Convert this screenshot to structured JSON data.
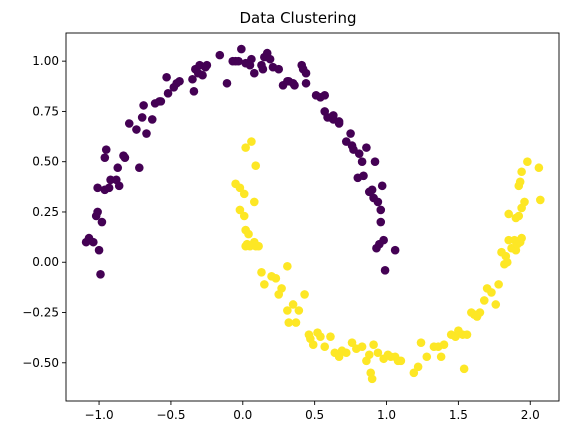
{
  "chart_data": {
    "type": "scatter",
    "title": "Data Clustering",
    "xlabel": "",
    "ylabel": "",
    "xlim": [
      -1.23,
      2.2
    ],
    "ylim": [
      -0.69,
      1.14
    ],
    "xticks": [
      -1.0,
      -0.5,
      0.0,
      0.5,
      1.0,
      1.5,
      2.0
    ],
    "xtick_labels": [
      "−1.0",
      "−0.5",
      "0.0",
      "0.5",
      "1.0",
      "1.5",
      "2.0"
    ],
    "yticks": [
      -0.5,
      -0.25,
      0.0,
      0.25,
      0.5,
      0.75,
      1.0
    ],
    "ytick_labels": [
      "−0.50",
      "−0.25",
      "0.00",
      "0.25",
      "0.50",
      "0.75",
      "1.00"
    ],
    "grid": false,
    "legend": "none",
    "series": [
      {
        "color": "#440154",
        "points": [
          [
            -1.09,
            0.1
          ],
          [
            -1.07,
            0.12
          ],
          [
            -1.04,
            0.1
          ],
          [
            -1.02,
            0.23
          ],
          [
            -1.01,
            0.25
          ],
          [
            -1.01,
            0.37
          ],
          [
            -0.99,
            -0.06
          ],
          [
            -1.0,
            0.06
          ],
          [
            -0.98,
            0.2
          ],
          [
            -0.96,
            0.36
          ],
          [
            -0.96,
            0.52
          ],
          [
            -0.95,
            0.56
          ],
          [
            -0.93,
            0.37
          ],
          [
            -0.92,
            0.41
          ],
          [
            -0.88,
            0.41
          ],
          [
            -0.87,
            0.47
          ],
          [
            -0.86,
            0.38
          ],
          [
            -0.83,
            0.53
          ],
          [
            -0.82,
            0.52
          ],
          [
            -0.79,
            0.69
          ],
          [
            -0.74,
            0.66
          ],
          [
            -0.72,
            0.47
          ],
          [
            -0.7,
            0.72
          ],
          [
            -0.69,
            0.78
          ],
          [
            -0.67,
            0.64
          ],
          [
            -0.63,
            0.71
          ],
          [
            -0.61,
            0.79
          ],
          [
            -0.58,
            0.8
          ],
          [
            -0.57,
            0.8
          ],
          [
            -0.52,
            0.84
          ],
          [
            -0.53,
            0.92
          ],
          [
            -0.48,
            0.87
          ],
          [
            -0.46,
            0.89
          ],
          [
            -0.44,
            0.9
          ],
          [
            -0.35,
            0.91
          ],
          [
            -0.34,
            0.85
          ],
          [
            -0.33,
            0.96
          ],
          [
            -0.31,
            0.94
          ],
          [
            -0.3,
            0.98
          ],
          [
            -0.28,
            0.93
          ],
          [
            -0.26,
            0.97
          ],
          [
            -0.25,
            0.98
          ],
          [
            -0.16,
            1.03
          ],
          [
            -0.11,
            0.89
          ],
          [
            -0.07,
            1.0
          ],
          [
            -0.05,
            1.0
          ],
          [
            -0.03,
            1.0
          ],
          [
            -0.01,
            1.06
          ],
          [
            0.02,
            0.99
          ],
          [
            0.05,
            0.98
          ],
          [
            0.06,
            1.01
          ],
          [
            0.08,
            0.94
          ],
          [
            0.13,
            0.98
          ],
          [
            0.14,
            0.96
          ],
          [
            0.15,
            1.02
          ],
          [
            0.17,
            1.04
          ],
          [
            0.19,
            1.01
          ],
          [
            0.21,
            0.97
          ],
          [
            0.25,
            0.96
          ],
          [
            0.28,
            0.88
          ],
          [
            0.31,
            0.9
          ],
          [
            0.32,
            0.9
          ],
          [
            0.35,
            0.89
          ],
          [
            0.36,
            0.88
          ],
          [
            0.41,
            0.98
          ],
          [
            0.42,
            0.96
          ],
          [
            0.44,
            0.94
          ],
          [
            0.44,
            0.89
          ],
          [
            0.51,
            0.83
          ],
          [
            0.54,
            0.82
          ],
          [
            0.57,
            0.83
          ],
          [
            0.57,
            0.75
          ],
          [
            0.59,
            0.72
          ],
          [
            0.61,
            0.72
          ],
          [
            0.63,
            0.71
          ],
          [
            0.63,
            0.73
          ],
          [
            0.67,
            0.69
          ],
          [
            0.67,
            0.7
          ],
          [
            0.72,
            0.6
          ],
          [
            0.75,
            0.64
          ],
          [
            0.76,
            0.58
          ],
          [
            0.77,
            0.56
          ],
          [
            0.8,
            0.42
          ],
          [
            0.81,
            0.54
          ],
          [
            0.83,
            0.5
          ],
          [
            0.84,
            0.43
          ],
          [
            0.86,
            0.57
          ],
          [
            0.88,
            0.35
          ],
          [
            0.9,
            0.36
          ],
          [
            0.91,
            0.32
          ],
          [
            0.92,
            0.5
          ],
          [
            0.94,
            0.3
          ],
          [
            0.96,
            0.26
          ],
          [
            0.96,
            0.2
          ],
          [
            0.97,
            0.38
          ],
          [
            0.93,
            0.07
          ],
          [
            0.95,
            0.09
          ],
          [
            0.98,
            0.11
          ],
          [
            0.99,
            -0.04
          ],
          [
            1.06,
            0.06
          ]
        ]
      },
      {
        "color": "#fde725",
        "points": [
          [
            0.02,
            0.57
          ],
          [
            0.06,
            0.6
          ],
          [
            0.09,
            0.48
          ],
          [
            -0.05,
            0.39
          ],
          [
            -0.02,
            0.37
          ],
          [
            0.01,
            0.34
          ],
          [
            0.08,
            0.3
          ],
          [
            -0.02,
            0.26
          ],
          [
            0.01,
            0.23
          ],
          [
            0.02,
            0.16
          ],
          [
            0.04,
            0.14
          ],
          [
            0.08,
            0.1
          ],
          [
            0.02,
            0.08
          ],
          [
            0.03,
            0.09
          ],
          [
            0.05,
            0.08
          ],
          [
            0.09,
            0.08
          ],
          [
            0.11,
            0.08
          ],
          [
            0.13,
            -0.05
          ],
          [
            0.15,
            -0.11
          ],
          [
            0.2,
            -0.07
          ],
          [
            0.23,
            -0.08
          ],
          [
            0.25,
            -0.16
          ],
          [
            0.27,
            -0.13
          ],
          [
            0.31,
            -0.02
          ],
          [
            0.31,
            -0.24
          ],
          [
            0.32,
            -0.3
          ],
          [
            0.35,
            -0.21
          ],
          [
            0.37,
            -0.3
          ],
          [
            0.39,
            -0.24
          ],
          [
            0.43,
            -0.16
          ],
          [
            0.46,
            -0.36
          ],
          [
            0.47,
            -0.38
          ],
          [
            0.49,
            -0.41
          ],
          [
            0.52,
            -0.35
          ],
          [
            0.54,
            -0.37
          ],
          [
            0.57,
            -0.42
          ],
          [
            0.61,
            -0.37
          ],
          [
            0.64,
            -0.45
          ],
          [
            0.67,
            -0.47
          ],
          [
            0.69,
            -0.44
          ],
          [
            0.72,
            -0.45
          ],
          [
            0.76,
            -0.4
          ],
          [
            0.79,
            -0.43
          ],
          [
            0.83,
            -0.42
          ],
          [
            0.86,
            -0.49
          ],
          [
            0.88,
            -0.46
          ],
          [
            0.89,
            -0.55
          ],
          [
            0.9,
            -0.58
          ],
          [
            0.91,
            -0.41
          ],
          [
            0.94,
            -0.45
          ],
          [
            0.98,
            -0.48
          ],
          [
            1.01,
            -0.46
          ],
          [
            1.03,
            -0.47
          ],
          [
            1.06,
            -0.47
          ],
          [
            1.08,
            -0.49
          ],
          [
            1.1,
            -0.49
          ],
          [
            1.19,
            -0.55
          ],
          [
            1.22,
            -0.52
          ],
          [
            1.24,
            -0.4
          ],
          [
            1.28,
            -0.47
          ],
          [
            1.33,
            -0.42
          ],
          [
            1.36,
            -0.42
          ],
          [
            1.38,
            -0.47
          ],
          [
            1.4,
            -0.41
          ],
          [
            1.45,
            -0.36
          ],
          [
            1.48,
            -0.37
          ],
          [
            1.5,
            -0.34
          ],
          [
            1.53,
            -0.36
          ],
          [
            1.54,
            -0.53
          ],
          [
            1.56,
            -0.36
          ],
          [
            1.59,
            -0.25
          ],
          [
            1.61,
            -0.26
          ],
          [
            1.63,
            -0.27
          ],
          [
            1.65,
            -0.25
          ],
          [
            1.68,
            -0.19
          ],
          [
            1.7,
            -0.13
          ],
          [
            1.73,
            -0.15
          ],
          [
            1.76,
            -0.21
          ],
          [
            1.78,
            -0.11
          ],
          [
            1.8,
            0.05
          ],
          [
            1.82,
            -0.01
          ],
          [
            1.83,
            0.03
          ],
          [
            1.84,
            0.0
          ],
          [
            1.85,
            0.11
          ],
          [
            1.87,
            0.07
          ],
          [
            1.89,
            0.11
          ],
          [
            1.9,
            0.06
          ],
          [
            1.91,
            0.09
          ],
          [
            1.93,
            0.1
          ],
          [
            1.94,
            0.12
          ],
          [
            1.85,
            0.24
          ],
          [
            1.9,
            0.22
          ],
          [
            1.92,
            0.23
          ],
          [
            1.94,
            0.27
          ],
          [
            1.96,
            0.3
          ],
          [
            1.92,
            0.38
          ],
          [
            1.93,
            0.4
          ],
          [
            1.94,
            0.45
          ],
          [
            1.98,
            0.5
          ],
          [
            2.06,
            0.47
          ],
          [
            2.07,
            0.31
          ]
        ]
      }
    ]
  }
}
